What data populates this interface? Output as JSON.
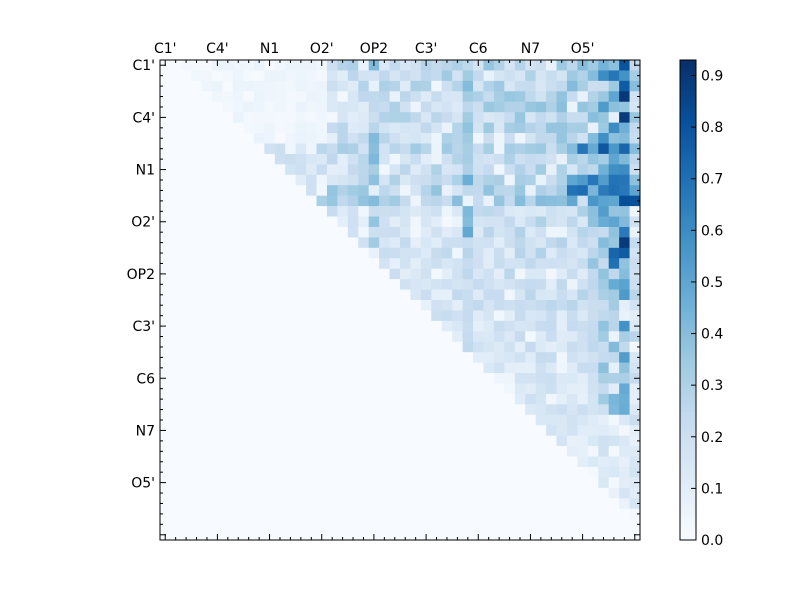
{
  "chart_data": {
    "type": "heatmap",
    "colormap": "Blues",
    "grid": false,
    "legend": "colorbar-right",
    "x_tick_labels": [
      "C1'",
      "C4'",
      "N1",
      "O2'",
      "OP2",
      "C3'",
      "C6",
      "N7",
      "O5'"
    ],
    "y_tick_labels": [
      "C1'",
      "C4'",
      "N1",
      "O2'",
      "OP2",
      "C3'",
      "C6",
      "N7",
      "O5'"
    ],
    "tick_every": 5,
    "n_rows": 46,
    "n_cols": 46,
    "vmin": 0.0,
    "vmax": 0.93,
    "colorbar_ticks": [
      "0.0",
      "0.1",
      "0.2",
      "0.3",
      "0.4",
      "0.5",
      "0.6",
      "0.7",
      "0.8",
      "0.9"
    ],
    "colorbar_tick_values": [
      0.0,
      0.1,
      0.2,
      0.3,
      0.4,
      0.5,
      0.6,
      0.7,
      0.8,
      0.9
    ],
    "matrix_description": "upper-triangular; zeros below diagonal",
    "value_profile": {
      "diagonal_band_start": 2,
      "base_level": 0.18,
      "left_upper_block_level": 0.04,
      "hot_columns": [
        {
          "col": 43,
          "max": 0.8
        },
        {
          "col": 44,
          "max": 0.93
        },
        {
          "col": 42,
          "max": 0.6
        },
        {
          "col": 41,
          "max": 0.45
        },
        {
          "col": 20,
          "max": 0.45
        },
        {
          "col": 29,
          "max": 0.5
        }
      ],
      "hot_rows": [
        {
          "row": 12,
          "max": 0.85
        },
        {
          "row": 13,
          "max": 0.93
        },
        {
          "row": 11,
          "max": 0.7
        },
        {
          "row": 8,
          "max": 0.8
        }
      ]
    }
  }
}
